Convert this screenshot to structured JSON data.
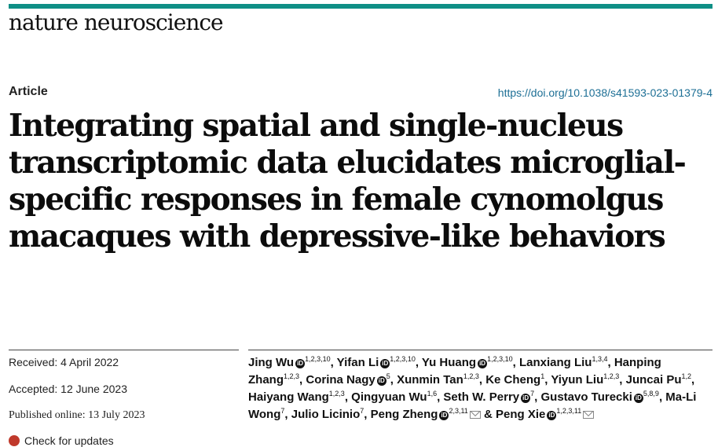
{
  "journal": "nature neuroscience",
  "article_type": "Article",
  "doi": "https://doi.org/10.1038/s41593-023-01379-4",
  "title": "Integrating spatial and single-nucleus transcriptomic data elucidates microglial-specific responses in female cynomolgus macaques with depressive-like behaviors",
  "dates": {
    "received": "Received: 4 April 2022",
    "accepted": "Accepted: 12 June 2023",
    "published": "Published online: 13 July 2023",
    "check": "Check for updates"
  },
  "authors": [
    {
      "name": "Jing Wu",
      "aff": "1,2,3,10",
      "orcid": true,
      "sep": ", "
    },
    {
      "name": "Yifan Li",
      "aff": "1,2,3,10",
      "orcid": true,
      "sep": ", "
    },
    {
      "name": "Yu Huang",
      "aff": "1,2,3,10",
      "orcid": true,
      "sep": ", "
    },
    {
      "name": "Lanxiang Liu",
      "aff": "1,3,4",
      "orcid": false,
      "sep": ", "
    },
    {
      "name": "Hanping Zhang",
      "aff": "1,2,3",
      "orcid": false,
      "sep": ", "
    },
    {
      "name": "Corina Nagy",
      "aff": "5",
      "orcid": true,
      "sep": ", "
    },
    {
      "name": "Xunmin Tan",
      "aff": "1,2,3",
      "orcid": false,
      "sep": ", "
    },
    {
      "name": "Ke Cheng",
      "aff": "1",
      "orcid": false,
      "sep": ", "
    },
    {
      "name": "Yiyun Liu",
      "aff": "1,2,3",
      "orcid": false,
      "sep": ", "
    },
    {
      "name": "Juncai Pu",
      "aff": "1,2",
      "orcid": false,
      "sep": ", "
    },
    {
      "name": "Haiyang Wang",
      "aff": "1,2,3",
      "orcid": false,
      "sep": ", "
    },
    {
      "name": "Qingyuan Wu",
      "aff": "1,6",
      "orcid": false,
      "sep": ", "
    },
    {
      "name": "Seth W. Perry",
      "aff": "7",
      "orcid": true,
      "sep": ", "
    },
    {
      "name": "Gustavo Turecki",
      "aff": "5,8,9",
      "orcid": true,
      "sep": ", "
    },
    {
      "name": "Ma-Li Wong",
      "aff": "7",
      "orcid": false,
      "sep": ", "
    },
    {
      "name": "Julio Licinio",
      "aff": "7",
      "orcid": false,
      "sep": ", "
    },
    {
      "name": "Peng Zheng",
      "aff": "2,3,11",
      "orcid": true,
      "mail": true,
      "sep": " & "
    },
    {
      "name": "Peng Xie",
      "aff": "1,2,3,11",
      "orcid": true,
      "mail": true,
      "sep": ""
    }
  ],
  "colors": {
    "accent_bar": "#0f8f86",
    "link": "#1d6f95"
  },
  "icons": {
    "orcid": "orcid-icon",
    "mail": "mail-icon",
    "check": "check-updates-icon"
  }
}
